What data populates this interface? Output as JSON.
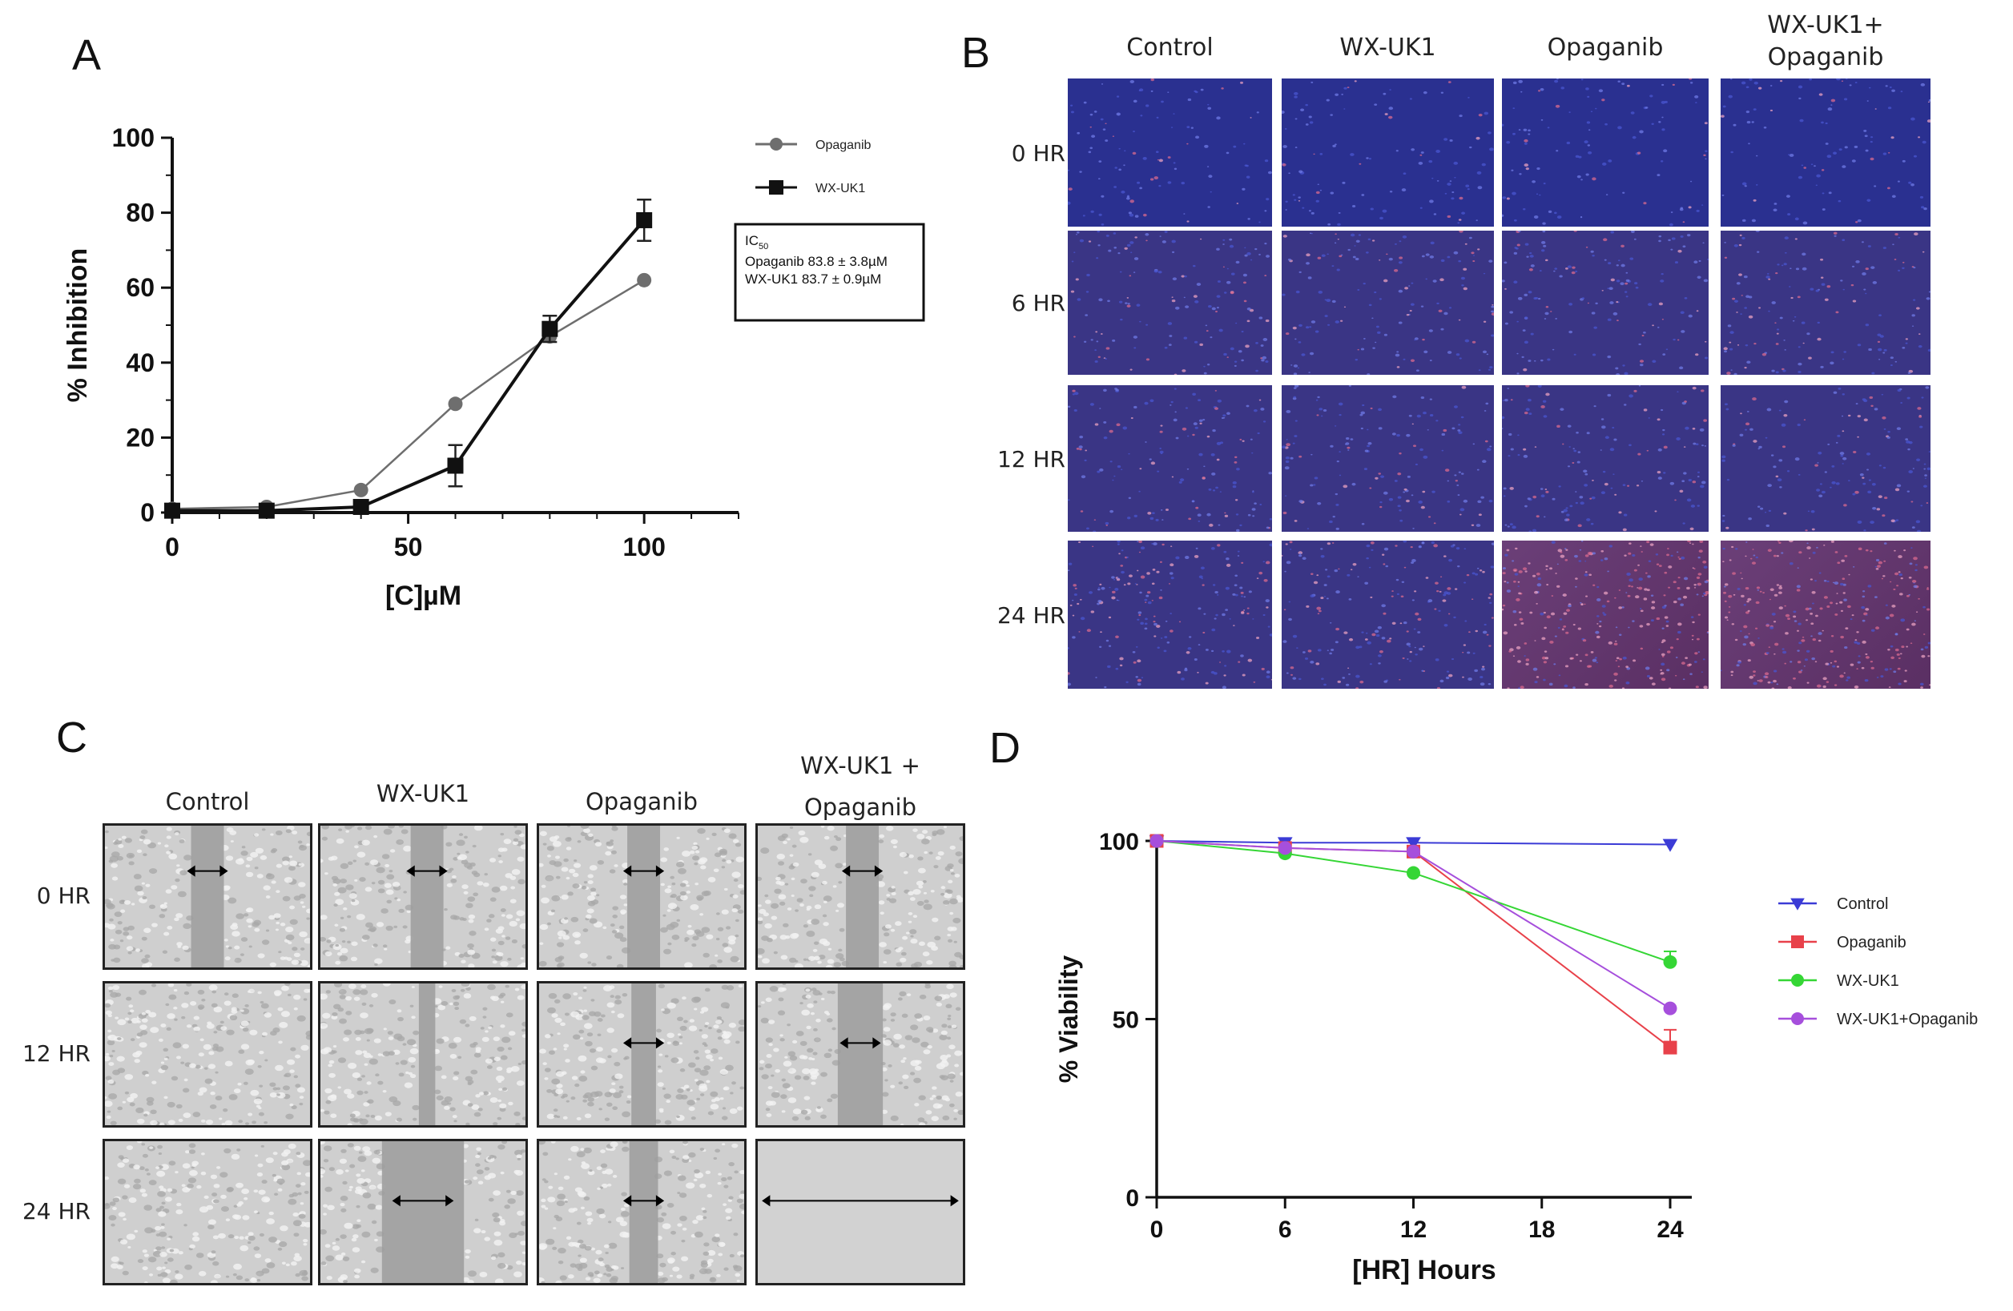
{
  "panels": {
    "a": {
      "letter": "A"
    },
    "b": {
      "letter": "B",
      "columns": [
        "Control",
        "WX-UK1",
        "Opaganib",
        "WX-UK1+\nOpaganib"
      ],
      "rows": [
        "0 HR",
        "6 HR",
        "12 HR",
        "24 HR"
      ]
    },
    "c": {
      "letter": "C",
      "columns": [
        "Control",
        "WX-UK1",
        "Opaganib",
        "WX-UK1 +\nOpaganib"
      ],
      "rows": [
        "0 HR",
        "12 HR",
        "24 HR"
      ]
    },
    "d": {
      "letter": "D"
    }
  },
  "chart_data": [
    {
      "id": "A",
      "type": "line",
      "xlabel": "[C]µM",
      "ylabel": "% Inhibition",
      "xlim": [
        0,
        120
      ],
      "ylim": [
        0,
        100
      ],
      "xticks": [
        0,
        50,
        100
      ],
      "yticks": [
        0,
        20,
        40,
        60,
        80,
        100
      ],
      "legend_position": "top-right",
      "series": [
        {
          "name": "Opaganib",
          "marker": "circle",
          "color": "#6e6e6e",
          "x": [
            0,
            20,
            40,
            60,
            80,
            100
          ],
          "y": [
            1,
            1.5,
            6,
            29,
            47,
            62
          ],
          "err": [
            0,
            0,
            0,
            0,
            0,
            0
          ]
        },
        {
          "name": "WX-UK1",
          "marker": "square",
          "color": "#111111",
          "x": [
            0,
            20,
            40,
            60,
            80,
            100
          ],
          "y": [
            0.5,
            0.5,
            1.5,
            12.5,
            49,
            78
          ],
          "err": [
            0,
            0,
            0,
            5.5,
            3.5,
            5.5
          ]
        }
      ],
      "annotation": {
        "line1_main": "IC",
        "line1_sub": "50",
        "line2": "Opaganib 83.8  ± 3.8µM",
        "line3": "WX-UK1 83.7  ±  0.9µM"
      }
    },
    {
      "id": "D",
      "type": "line",
      "xlabel": "[HR] Hours",
      "ylabel": "% Viability",
      "xlim": [
        0,
        24
      ],
      "ylim": [
        0,
        100
      ],
      "xticks": [
        0,
        6,
        12,
        18,
        24
      ],
      "yticks": [
        0,
        50,
        100
      ],
      "legend_position": "right",
      "series": [
        {
          "name": "Control",
          "marker": "triangle-down",
          "color": "#3b3bd6",
          "x": [
            0,
            6,
            12,
            24
          ],
          "y": [
            100,
            99.5,
            99.5,
            99
          ]
        },
        {
          "name": "Opaganib",
          "marker": "square",
          "color": "#e8414a",
          "x": [
            0,
            6,
            12,
            24
          ],
          "y": [
            100,
            98,
            97,
            42
          ],
          "err": [
            0,
            0,
            0,
            5
          ]
        },
        {
          "name": "WX-UK1",
          "marker": "circle",
          "color": "#35d635",
          "x": [
            0,
            6,
            12,
            24
          ],
          "y": [
            100,
            96.5,
            91,
            66
          ],
          "err": [
            0,
            0,
            0,
            3
          ]
        },
        {
          "name": "WX-UK1+Opaganib",
          "marker": "circle",
          "color": "#a64fdc",
          "x": [
            0,
            6,
            12,
            24
          ],
          "y": [
            100,
            98,
            97,
            53
          ]
        }
      ]
    }
  ]
}
